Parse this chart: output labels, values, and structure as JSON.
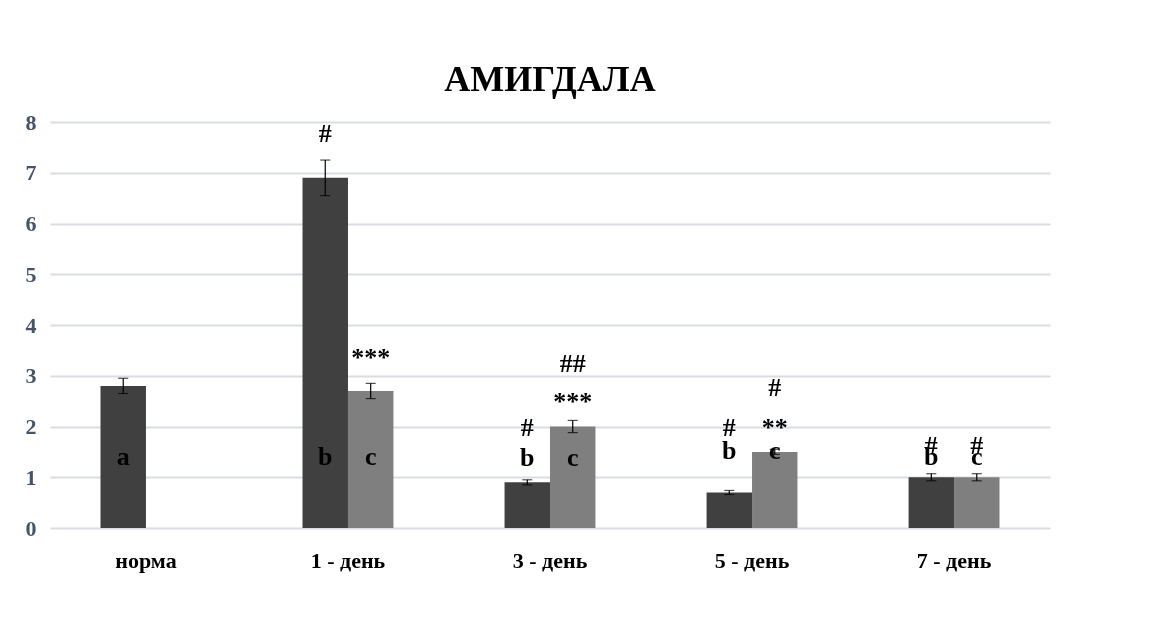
{
  "chart_data": {
    "type": "bar",
    "title": "АМИГДАЛА",
    "categories": [
      "норма",
      "1 - день",
      "3 - день",
      "5 - день",
      "7 - день"
    ],
    "series": [
      {
        "color": "#404040",
        "values": [
          2.8,
          6.9,
          0.9,
          0.7,
          1.0
        ],
        "errors": [
          0.15,
          0.35,
          0.05,
          0.04,
          0.07
        ]
      },
      {
        "color": "#7f7f7f",
        "values": [
          null,
          2.7,
          2.0,
          1.5,
          1.0
        ],
        "errors": [
          null,
          0.15,
          0.12,
          0.05,
          0.07
        ]
      }
    ],
    "ylim": [
      0,
      8
    ],
    "yticks": [
      0,
      1,
      2,
      3,
      4,
      5,
      6,
      7,
      8
    ],
    "grid": "y",
    "legend": false,
    "annotations": [
      "a",
      "#",
      "b",
      "c",
      "***",
      "#",
      "b",
      "c",
      "***",
      "##",
      "#",
      "b",
      "c",
      "**",
      "#",
      "b",
      "#",
      "c",
      "#"
    ]
  }
}
